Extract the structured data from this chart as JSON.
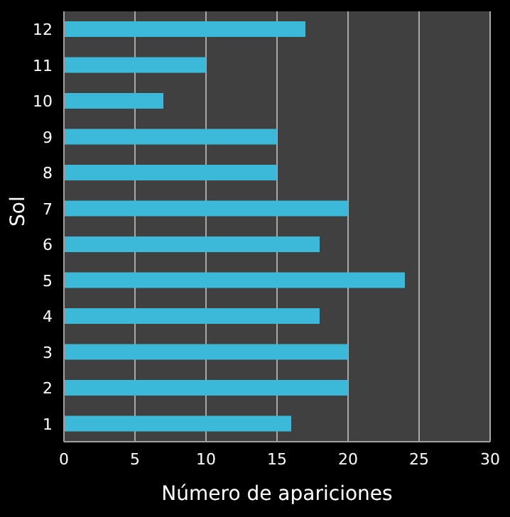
{
  "chart_data": {
    "type": "bar",
    "orientation": "horizontal",
    "xlabel": "Número  de apariciones",
    "ylabel": "Sol",
    "categories": [
      "12",
      "11",
      "10",
      "9",
      "8",
      "7",
      "6",
      "5",
      "4",
      "3",
      "2",
      "1"
    ],
    "values": [
      17,
      10,
      7,
      15,
      15,
      20,
      18,
      24,
      18,
      20,
      20,
      16
    ],
    "color": "#3cb8d8",
    "xlim": [
      0,
      30
    ],
    "xticks": [
      0,
      5,
      10,
      15,
      20,
      25,
      30
    ],
    "grid": "x"
  }
}
